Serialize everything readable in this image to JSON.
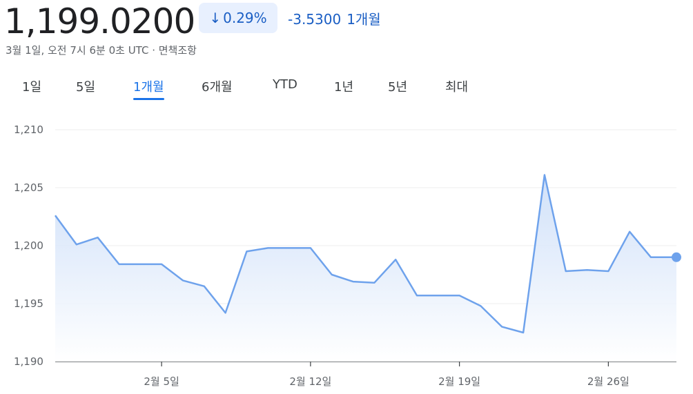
{
  "header": {
    "price": "1,199.0200",
    "change_percent": "0.29%",
    "change_abs": "-3.5300",
    "period": "1개월",
    "timestamp": "3월 1일, 오전 7시 6분 0초 UTC · 면책조항"
  },
  "tabs": [
    {
      "label": "1일",
      "active": false
    },
    {
      "label": "5일",
      "active": false
    },
    {
      "label": "1개월",
      "active": true
    },
    {
      "label": "6개월",
      "active": false
    },
    {
      "label": "YTD",
      "active": false
    },
    {
      "label": "1년",
      "active": false
    },
    {
      "label": "5년",
      "active": false
    },
    {
      "label": "최대",
      "active": false
    }
  ],
  "colors": {
    "accent": "#1a73e8",
    "line": "#6ea2ec",
    "down": "#1a5ec4"
  },
  "chart_data": {
    "type": "area",
    "ylim": [
      1190,
      1210
    ],
    "yticks": [
      "1,210",
      "1,205",
      "1,200",
      "1,195",
      "1,190"
    ],
    "ytick_values": [
      1210,
      1205,
      1200,
      1195,
      1190
    ],
    "xticks": [
      {
        "label": "2월 5일",
        "x": 5
      },
      {
        "label": "2월 12일",
        "x": 12
      },
      {
        "label": "2월 19일",
        "x": 19
      },
      {
        "label": "2월 26일",
        "x": 26
      }
    ],
    "xlim": [
      0,
      29.2
    ],
    "series": [
      {
        "x": [
          0,
          1,
          2,
          3,
          4,
          5,
          6,
          7,
          8,
          9,
          10,
          11,
          12,
          13,
          14,
          15,
          16,
          17,
          18,
          19,
          20,
          21,
          22,
          23,
          24,
          25,
          26,
          27,
          28,
          29.2
        ],
        "y": [
          1202.6,
          1200.1,
          1200.7,
          1198.4,
          1198.4,
          1198.4,
          1197.0,
          1196.5,
          1194.2,
          1199.5,
          1199.8,
          1199.8,
          1199.8,
          1197.5,
          1196.9,
          1196.8,
          1198.8,
          1195.7,
          1195.7,
          1195.7,
          1194.8,
          1193.0,
          1192.5,
          1206.1,
          1197.8,
          1197.9,
          1197.8,
          1201.2,
          1199.0,
          1199.0
        ]
      }
    ]
  }
}
